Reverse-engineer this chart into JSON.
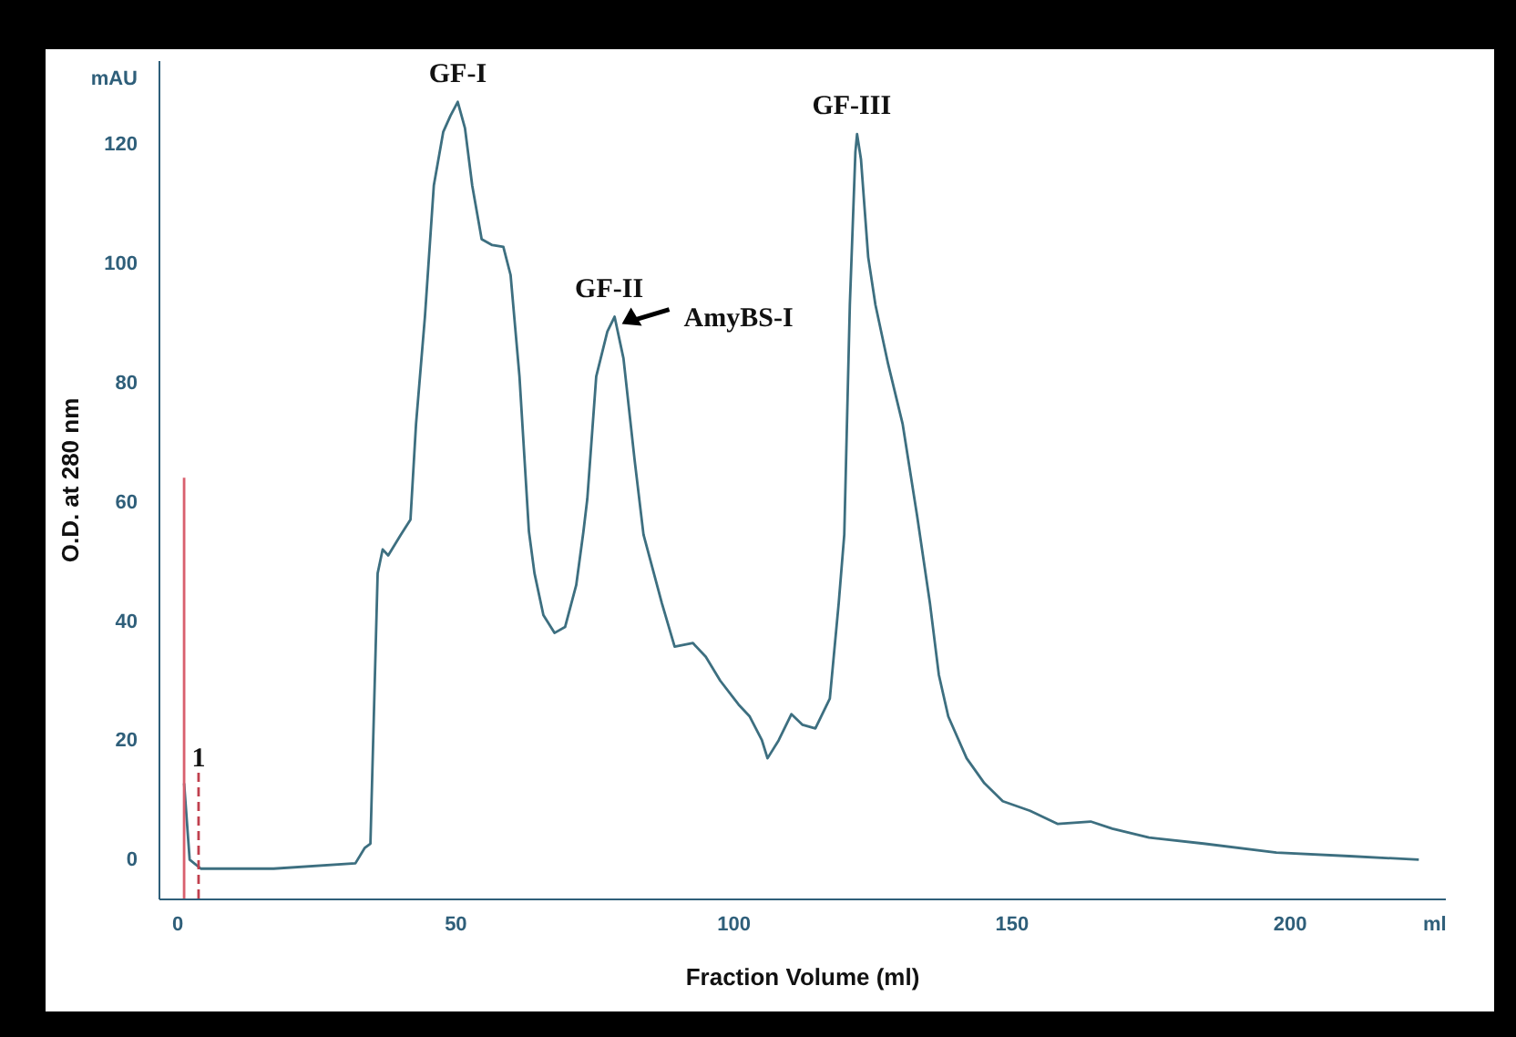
{
  "chart_data": {
    "type": "line",
    "xlabel": "Fraction Volume (ml)",
    "ylabel": "O.D. at 280 nm",
    "xlim": [
      -3.3,
      228
    ],
    "xticks": [
      0,
      50,
      100,
      150,
      200,
      {
        "value": 226,
        "label": "ml"
      }
    ],
    "ylim": [
      -6.5,
      134
    ],
    "yticks": [
      0,
      20,
      40,
      60,
      80,
      100,
      120,
      {
        "value": 131,
        "label": "mAU"
      }
    ],
    "grid": false,
    "series": [
      {
        "color": "#3d6f80",
        "x": [
          1.3,
          2.3,
          4.3,
          17.4,
          32.1,
          33.8,
          34.8,
          36.1,
          37.0,
          38.0,
          40.3,
          42.0,
          43.0,
          44.6,
          46.2,
          47.9,
          49.2,
          50.5,
          51.8,
          53.1,
          54.8,
          56.7,
          58.7,
          60.0,
          61.6,
          63.3,
          64.3,
          65.9,
          67.9,
          69.8,
          71.8,
          73.1,
          73.8,
          75.4,
          77.4,
          78.7,
          80.3,
          82.3,
          83.9,
          87.2,
          89.5,
          92.8,
          95.1,
          97.7,
          101.0,
          103.0,
          105.2,
          106.2,
          108.2,
          110.5,
          112.5,
          114.8,
          117.4,
          119.0,
          120.0,
          121.0,
          122.0,
          122.3,
          123.0,
          124.3,
          125.6,
          127.9,
          130.5,
          133.1,
          135.4,
          137.0,
          138.7,
          142.0,
          145.2,
          148.5,
          153.4,
          158.4,
          164.3,
          168.2,
          174.8,
          184.6,
          197.7,
          210.8,
          223.3
        ],
        "values": [
          12.8,
          0,
          -1.5,
          -1.5,
          -0.6,
          2,
          2.7,
          48,
          52,
          51,
          54.5,
          57,
          73,
          91,
          113,
          122,
          124.7,
          127,
          122.6,
          113,
          104,
          103,
          102.7,
          98,
          81,
          55,
          48,
          41,
          38,
          39,
          46,
          55,
          60.5,
          81,
          88.5,
          91,
          84,
          67,
          54.5,
          43,
          35.7,
          36.3,
          34,
          30,
          26,
          24,
          20,
          17,
          20,
          24.4,
          22.6,
          22,
          27,
          43,
          54.5,
          93,
          118.6,
          121.6,
          117.4,
          101,
          93,
          83,
          73,
          57.6,
          43,
          31,
          24,
          17,
          12.8,
          9.8,
          8.2,
          6,
          6.4,
          5.2,
          3.7,
          2.7,
          1.2,
          0.6,
          0
        ]
      },
      {
        "type": "line",
        "color": "#d9606e",
        "x": [
          1.3,
          1.3
        ],
        "values": [
          -6.5,
          64
        ]
      },
      {
        "type": "line",
        "color": "#c0404e",
        "line_style": "dashed",
        "x": [
          3.9,
          3.9
        ],
        "values": [
          -6.5,
          15
        ]
      }
    ],
    "annotations": [
      {
        "text": "GF-I",
        "x": 50.5,
        "y": 127
      },
      {
        "text": "GF-II",
        "x": 78.7,
        "y": 91
      },
      {
        "text": "GF-III",
        "x": 122.3,
        "y": 121.6
      },
      {
        "text": "AmyBS-I",
        "x": 78.7,
        "y": 91
      },
      {
        "text": "1",
        "x": 3.9,
        "y": 15
      }
    ]
  }
}
